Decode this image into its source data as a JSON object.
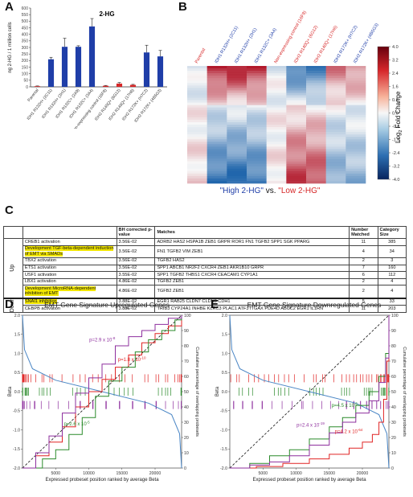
{
  "panels": {
    "A": {
      "label": "A",
      "chart_data": {
        "type": "bar",
        "title": "2-HG",
        "ylabel": "ng 2-HG / 1 million cells",
        "ylim": [
          0,
          600
        ],
        "yticks": [
          "0",
          "50",
          "100",
          "150",
          "200",
          "250",
          "300",
          "350",
          "400",
          "450",
          "500",
          "550",
          "600"
        ],
        "categories": [
          "Parental",
          "IDH1 R132H+ (2C11)",
          "IDH1 R132H+ (2H1)",
          "IDH1 R132C+ (2A9)",
          "IDH1 R132C+ (3A4)",
          "Non-expressing control (16F8)",
          "IDH2 R140Q+ (6G12)",
          "IDH2 R140Q+ (17H6)",
          "IDH2 R172K+ (H7C2)",
          "IDH2 R172K+ (4B5G3)"
        ],
        "values": [
          5,
          210,
          305,
          305,
          460,
          8,
          25,
          15,
          262,
          232
        ],
        "errors": [
          2,
          15,
          65,
          8,
          60,
          3,
          8,
          4,
          55,
          45
        ],
        "colors": [
          "#d62728",
          "#1f3ea8",
          "#1f3ea8",
          "#1f3ea8",
          "#1f3ea8",
          "#d62728",
          "#d62728",
          "#d62728",
          "#1f3ea8",
          "#1f3ea8"
        ]
      }
    },
    "B": {
      "label": "B",
      "chart_data": {
        "type": "heatmap",
        "column_labels": [
          "Parental",
          "IDH1 R132H+ (2C11)",
          "IDH1 R132H+ (2H1)",
          "IDH1 R132C+ (3A4)",
          "Non-expressing control (16F8)",
          "IDH2 R140Q+ (6G12)",
          "IDH2 R140Q+ (17H6)",
          "IDH2 R172K+ (H7C2)",
          "IDH2 R172K+ (4B5G3)"
        ],
        "column_colors": [
          "#d62728",
          "#1f3ea8",
          "#1f3ea8",
          "#1f3ea8",
          "#d62728",
          "#d62728",
          "#d62728",
          "#1f3ea8",
          "#1f3ea8"
        ],
        "colorbar_ticks": [
          "4.0",
          "3.2",
          "2.4",
          "1.6",
          "0.8",
          "0.0",
          "-0.8",
          "-1.6",
          "-2.4",
          "-3.2",
          "-4.0"
        ],
        "colorbar_label": "Log",
        "colorbar_label_sub": "2",
        "colorbar_label_tail": " Fold Change",
        "caption_high": "\"High 2-HG\"",
        "caption_vs": " vs. ",
        "caption_low": "\"Low 2-HG\""
      }
    },
    "C": {
      "label": "C",
      "headers": [
        "",
        "",
        "BH corrected p-value",
        "Matches",
        "Number Matched",
        "Category Size"
      ],
      "group_up": "Up",
      "group_down": "Down",
      "up_rows": [
        {
          "term": "CREB1 activation",
          "p": "3.56E-02",
          "matches": "ADRB2 HAS2 HSPA1B ZEB1 GRPR ROR1 FN1 TGFB2 SPP1 SGK PPARG",
          "n": "11",
          "size": "385",
          "hl": false
        },
        {
          "term": "Development TGF-beta-dependent induction of EMT via SMADs",
          "p": "3.56E-02",
          "matches": "FN1 TGFB2 VIM ZEB1",
          "n": "4",
          "size": "34",
          "hl": true
        },
        {
          "term": "TBX2 activation",
          "p": "3.56E-02",
          "matches": "TGFB2 HAS2",
          "n": "2",
          "size": "3",
          "hl": false
        },
        {
          "term": "ETS1 activation",
          "p": "3.56E-02",
          "matches": "SPP1 ABCB1 NR2F2 CXCR4 ZEB1 AKR1B10 GRPR",
          "n": "7",
          "size": "160",
          "hl": false
        },
        {
          "term": "USF1 activation",
          "p": "3.55E-02",
          "matches": "SPP1 TGFB2 THBS1 CXCR4 CEACAM1 CYP1A1",
          "n": "6",
          "size": "112",
          "hl": false
        },
        {
          "term": "LBX1 activation",
          "p": "4.86E-02",
          "matches": "TGFB2 ZEB1",
          "n": "2",
          "size": "4",
          "hl": false
        },
        {
          "term": "Development MicroRNA-dependent inhibition of EMT",
          "p": "4.86E-02",
          "matches": "TGFB2 ZEB1",
          "n": "2",
          "size": "4",
          "hl": true
        }
      ],
      "down_rows": [
        {
          "term": "SNAI1 inhibition",
          "p": "3.88E-02",
          "matches": "EGR1 RAB25 CLDN7 CLDN3 CDH1",
          "n": "5",
          "size": "33",
          "hl": true
        },
        {
          "term": "CEBPB activation",
          "p": "3.88E-02",
          "matches": "TRIB3 CYP24A1 INHBE KLRC3 PLAC1 ATF3 ITGAX PDE4D ABCC2 EGR1 IL1RN",
          "n": "11",
          "size": "203",
          "hl": false
        }
      ]
    },
    "D": {
      "label": "D",
      "chart_data": {
        "type": "line",
        "title": "EMT Gene Signature Upregulated Genes",
        "xlabel": "Expressed probeset position ranked by average Beta",
        "ylabel": "Beta",
        "y2label": "Cumulative percentage of overlapping probesets",
        "xlim": [
          0,
          24000
        ],
        "ylim": [
          -2.0,
          2.0
        ],
        "y2lim": [
          0,
          100
        ],
        "xticks": [
          "5000",
          "10000",
          "15000",
          "20000"
        ],
        "yticks": [
          "2.0",
          "1.5",
          "1.0",
          "0.5",
          "0.0",
          "-0.5",
          "-1.0",
          "-1.5",
          "-2.0"
        ],
        "y2ticks": [
          "100",
          "90",
          "80",
          "70",
          "60",
          "50",
          "40",
          "30",
          "20",
          "10",
          "0"
        ],
        "pvalues": [
          {
            "base": "p=2.9 x 10",
            "exp": "-8",
            "color": "#8e2f9e"
          },
          {
            "base": "p=1.8 x 10",
            "exp": "-10",
            "color": "#e02424"
          },
          {
            "base": "p=2.6 x 10",
            "exp": "-5",
            "color": "#2a8a2a"
          }
        ],
        "series": [
          {
            "color": "#e02424",
            "points": [
              [
                0,
                0
              ],
              [
                2000,
                8
              ],
              [
                4000,
                17
              ],
              [
                6000,
                27
              ],
              [
                8000,
                40
              ],
              [
                10000,
                50
              ],
              [
                12000,
                58
              ],
              [
                14000,
                66
              ],
              [
                16000,
                74
              ],
              [
                18000,
                82
              ],
              [
                20000,
                88
              ],
              [
                22000,
                93
              ],
              [
                24000,
                100
              ]
            ]
          },
          {
            "color": "#2a8a2a",
            "points": [
              [
                0,
                0
              ],
              [
                3000,
                6
              ],
              [
                5000,
                12
              ],
              [
                7000,
                22
              ],
              [
                9000,
                33
              ],
              [
                11000,
                47
              ],
              [
                13000,
                57
              ],
              [
                15000,
                66
              ],
              [
                17000,
                76
              ],
              [
                19000,
                84
              ],
              [
                21000,
                90
              ],
              [
                23000,
                97
              ],
              [
                24000,
                100
              ]
            ]
          },
          {
            "color": "#8e2f9e",
            "points": [
              [
                0,
                0
              ],
              [
                2000,
                10
              ],
              [
                4000,
                21
              ],
              [
                6000,
                36
              ],
              [
                8000,
                49
              ],
              [
                10000,
                59
              ],
              [
                12000,
                68
              ],
              [
                14000,
                80
              ],
              [
                16000,
                86
              ],
              [
                18000,
                90
              ],
              [
                20000,
                94
              ],
              [
                22000,
                98
              ],
              [
                24000,
                100
              ]
            ]
          }
        ],
        "beta_curve": [
          [
            0,
            2.0
          ],
          [
            300,
            1.1
          ],
          [
            1500,
            0.6
          ],
          [
            5000,
            0.3
          ],
          [
            12000,
            0.0
          ],
          [
            19000,
            -0.3
          ],
          [
            22500,
            -0.6
          ],
          [
            23700,
            -1.1
          ],
          [
            24000,
            -2.0
          ]
        ]
      }
    },
    "E": {
      "label": "E",
      "chart_data": {
        "type": "line",
        "title": "EMT Gene Signature Downregulated Genes",
        "xlabel": "Expressed probeset position ranked by average Beta",
        "ylabel": "Beta",
        "y2label": "Cumulative percentage of overlapping probesets",
        "xlim": [
          0,
          24000
        ],
        "ylim": [
          -2.0,
          2.0
        ],
        "y2lim": [
          0,
          100
        ],
        "xticks": [
          "5000",
          "10000",
          "15000",
          "20000"
        ],
        "yticks": [
          "2.0",
          "1.5",
          "1.0",
          "0.5",
          "0.0",
          "-0.5",
          "-1.0",
          "-1.5",
          "-2.0"
        ],
        "y2ticks": [
          "100",
          "90",
          "80",
          "70",
          "60",
          "50",
          "40",
          "30",
          "20",
          "10",
          "0"
        ],
        "pvalues": [
          {
            "base": "p=4.5 x 10",
            "exp": "-6",
            "color": "#2a8a2a"
          },
          {
            "base": "p=2.4 x 10",
            "exp": "-19",
            "color": "#8e2f9e"
          },
          {
            "base": "p=4.2 x 10",
            "exp": "-64",
            "color": "#e02424"
          }
        ],
        "series": [
          {
            "color": "#e02424",
            "points": [
              [
                0,
                0
              ],
              [
                4000,
                1
              ],
              [
                8000,
                3
              ],
              [
                12000,
                6
              ],
              [
                15000,
                9
              ],
              [
                18000,
                13
              ],
              [
                20000,
                17
              ],
              [
                21500,
                22
              ],
              [
                22500,
                30
              ],
              [
                23200,
                45
              ],
              [
                23700,
                70
              ],
              [
                24000,
                100
              ]
            ]
          },
          {
            "color": "#2a8a2a",
            "points": [
              [
                0,
                0
              ],
              [
                3000,
                3
              ],
              [
                6000,
                8
              ],
              [
                9000,
                12
              ],
              [
                12000,
                19
              ],
              [
                15000,
                27
              ],
              [
                17000,
                33
              ],
              [
                19000,
                41
              ],
              [
                21000,
                50
              ],
              [
                22500,
                60
              ],
              [
                23500,
                75
              ],
              [
                24000,
                100
              ]
            ]
          },
          {
            "color": "#8e2f9e",
            "points": [
              [
                0,
                0
              ],
              [
                3000,
                2
              ],
              [
                6000,
                4
              ],
              [
                9000,
                8
              ],
              [
                12000,
                15
              ],
              [
                15000,
                23
              ],
              [
                17000,
                30
              ],
              [
                19000,
                36
              ],
              [
                21000,
                44
              ],
              [
                22500,
                56
              ],
              [
                23500,
                72
              ],
              [
                24000,
                100
              ]
            ]
          }
        ],
        "beta_curve": [
          [
            0,
            2.0
          ],
          [
            300,
            1.1
          ],
          [
            1500,
            0.6
          ],
          [
            5000,
            0.3
          ],
          [
            12000,
            0.0
          ],
          [
            19000,
            -0.3
          ],
          [
            22500,
            -0.6
          ],
          [
            23700,
            -1.1
          ],
          [
            24000,
            -2.0
          ]
        ]
      }
    }
  }
}
